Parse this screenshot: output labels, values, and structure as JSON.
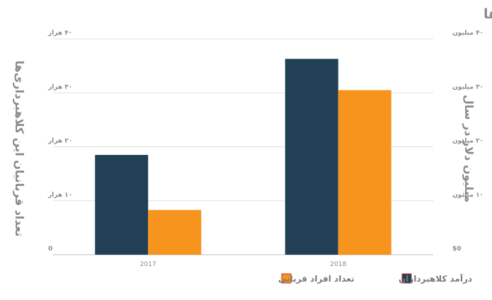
{
  "chart_data": {
    "type": "bar",
    "title": "درآمد کلاهبرداران و تعداد افراد قربانی در این کلاهبرداری‌ها",
    "categories": [
      "2017",
      "2018"
    ],
    "series": [
      {
        "name": "درآمد کلاهبرداران",
        "values": [
          18.5,
          36.3
        ],
        "color": "#213f55",
        "axis": "right"
      },
      {
        "name": "تعداد افراد قربانی",
        "values": [
          8.3,
          30.5
        ],
        "color": "#f7941d",
        "axis": "left"
      }
    ],
    "left_axis": {
      "label": "تعداد قربانیان این کلاهبرداری‌ها",
      "ylim": [
        0,
        40
      ],
      "ticks": [
        {
          "value": 0,
          "label": "0"
        },
        {
          "value": 10,
          "label": "۱۰ هزار"
        },
        {
          "value": 20,
          "label": "۲۰ هزار"
        },
        {
          "value": 30,
          "label": "۳۰ هزار"
        },
        {
          "value": 40,
          "label": "۴۰ هزار"
        }
      ]
    },
    "right_axis": {
      "label": "میلیون دلار در سال",
      "ylim": [
        0,
        40
      ],
      "ticks": [
        {
          "value": 0,
          "label": "$0"
        },
        {
          "value": 10,
          "label": "۱۰ میلیون"
        },
        {
          "value": 20,
          "label": "۲۰ میلیون"
        },
        {
          "value": 30,
          "label": "۳۰ میلیون"
        },
        {
          "value": 40,
          "label": "۴۰ میلیون"
        }
      ]
    },
    "grid": true,
    "legend_position": "bottom"
  }
}
